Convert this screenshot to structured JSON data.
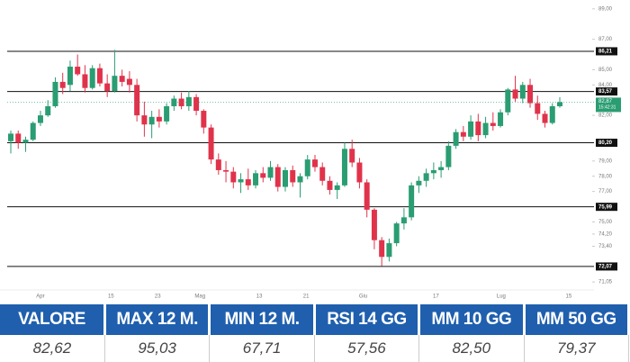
{
  "chart_data": {
    "type": "candlestick",
    "open": [
      80.3,
      80.8,
      80.2,
      80.4,
      81.5,
      82.0,
      82.6,
      84.2,
      84.0,
      85.2,
      84.7,
      83.8,
      85.1,
      84.1,
      83.6,
      84.6,
      84.4,
      84.0,
      82.0,
      81.4,
      81.9,
      81.6,
      82.6,
      83.1,
      82.6,
      83.2,
      82.3,
      81.2,
      79.1,
      78.4,
      78.3,
      77.6,
      77.8,
      77.4,
      78.2,
      77.9,
      78.6,
      77.3,
      78.4,
      77.6,
      78.0,
      79.1,
      78.6,
      77.7,
      77.1,
      77.4,
      79.8,
      78.9,
      77.6,
      75.8,
      73.8,
      72.7,
      73.6,
      74.9,
      75.3,
      77.4,
      77.7,
      78.2,
      78.4,
      78.6,
      80.0,
      80.9,
      80.6,
      81.6,
      80.7,
      81.5,
      81.3,
      82.2,
      83.7,
      83.1,
      84.0,
      82.8,
      82.1,
      81.5,
      82.6
    ],
    "high": [
      81.0,
      81.0,
      80.6,
      81.6,
      82.3,
      83.0,
      84.5,
      84.8,
      85.6,
      86.0,
      85.3,
      85.3,
      85.4,
      84.7,
      86.3,
      85.0,
      84.9,
      84.4,
      82.9,
      82.3,
      82.4,
      82.8,
      83.3,
      83.5,
      83.6,
      83.4,
      82.4,
      81.4,
      79.5,
      79.0,
      78.6,
      78.2,
      78.5,
      78.4,
      78.6,
      79.0,
      78.8,
      78.6,
      78.7,
      78.2,
      79.4,
      79.4,
      78.9,
      78.0,
      77.6,
      80.2,
      80.4,
      79.2,
      77.8,
      75.9,
      74.0,
      73.9,
      75.0,
      75.9,
      77.6,
      78.0,
      78.5,
      78.9,
      79.0,
      80.3,
      81.1,
      81.3,
      82.0,
      82.1,
      81.9,
      82.2,
      82.4,
      83.8,
      84.6,
      84.2,
      84.4,
      83.3,
      82.3,
      82.8,
      83.2
    ],
    "low": [
      79.5,
      79.8,
      79.6,
      80.3,
      81.3,
      81.9,
      82.5,
      83.4,
      83.6,
      84.6,
      83.5,
      83.7,
      83.9,
      83.2,
      83.5,
      83.9,
      83.5,
      81.6,
      80.6,
      80.5,
      81.2,
      81.4,
      82.3,
      82.4,
      82.3,
      82.0,
      80.8,
      78.8,
      78.1,
      77.6,
      77.2,
      76.9,
      77.1,
      77.2,
      77.6,
      77.7,
      77.0,
      77.0,
      77.3,
      76.6,
      77.8,
      78.3,
      77.4,
      76.8,
      76.5,
      77.3,
      78.6,
      77.2,
      75.3,
      73.2,
      72.1,
      72.4,
      73.4,
      74.5,
      75.1,
      76.9,
      77.3,
      77.8,
      77.9,
      78.4,
      79.8,
      80.3,
      80.4,
      80.3,
      80.5,
      81.0,
      81.2,
      82.0,
      82.9,
      82.8,
      82.5,
      81.7,
      81.2,
      81.4,
      82.5
    ],
    "close": [
      80.8,
      80.2,
      80.4,
      81.5,
      82.0,
      82.6,
      84.2,
      83.8,
      85.2,
      84.7,
      83.8,
      85.1,
      84.1,
      83.6,
      84.6,
      84.2,
      84.0,
      82.0,
      81.4,
      81.9,
      81.6,
      82.6,
      83.1,
      82.6,
      83.2,
      82.3,
      81.2,
      79.1,
      78.4,
      78.3,
      77.6,
      77.8,
      77.4,
      78.2,
      77.9,
      78.6,
      77.3,
      78.4,
      77.6,
      78.0,
      79.1,
      78.6,
      77.7,
      77.1,
      77.4,
      79.8,
      78.9,
      77.6,
      75.8,
      73.8,
      72.7,
      73.6,
      74.9,
      75.3,
      77.4,
      77.7,
      78.2,
      78.4,
      78.6,
      80.0,
      80.9,
      80.6,
      81.6,
      80.7,
      81.5,
      81.3,
      82.2,
      83.7,
      83.1,
      84.0,
      82.8,
      82.1,
      81.5,
      82.6,
      82.87
    ],
    "up_color": "#2a9d72",
    "down_color": "#e0334b",
    "ylim": [
      70.35,
      89.58
    ],
    "yticks": [
      {
        "value": 89,
        "label": "89,00"
      },
      {
        "value": 87,
        "label": "87,00"
      },
      {
        "value": 85,
        "label": "85,00"
      },
      {
        "value": 84,
        "label": "84,00"
      },
      {
        "value": 82,
        "label": "82,00"
      },
      {
        "value": 79,
        "label": "79,00"
      },
      {
        "value": 78,
        "label": "78,00"
      },
      {
        "value": 77,
        "label": "77,00"
      },
      {
        "value": 75,
        "label": "75,00"
      },
      {
        "value": 74.2,
        "label": "74,20"
      },
      {
        "value": 73.4,
        "label": "73,40"
      },
      {
        "value": 71.05,
        "label": "71,05"
      }
    ],
    "xticks": [
      {
        "value": 4,
        "label": "Apr"
      },
      {
        "value": 13.5,
        "label": "15"
      },
      {
        "value": 19.8,
        "label": "23"
      },
      {
        "value": 25.5,
        "label": "Mag"
      },
      {
        "value": 33.5,
        "label": "13"
      },
      {
        "value": 39.8,
        "label": "21"
      },
      {
        "value": 47.5,
        "label": "Giu"
      },
      {
        "value": 57.3,
        "label": "17"
      },
      {
        "value": 66.1,
        "label": "Lug"
      },
      {
        "value": 75.2,
        "label": "15"
      }
    ],
    "levels": [
      {
        "value": 86.21,
        "label": "86,21"
      },
      {
        "value": 83.57,
        "label": "83,57"
      },
      {
        "value": 80.2,
        "label": "80,20"
      },
      {
        "value": 75.99,
        "label": "75,99"
      },
      {
        "value": 72.07,
        "label": "72,07"
      }
    ],
    "last_price": {
      "value": 82.87,
      "label": "82,87"
    },
    "last_time": "15:42:31"
  },
  "table": {
    "headers": [
      "VALORE",
      "MAX 12 M.",
      "MIN 12 M.",
      "RSI 14 GG",
      "MM 10 GG",
      "MM 50 GG"
    ],
    "rows": [
      [
        "82,62",
        "95,03",
        "67,71",
        "57,56",
        "82,50",
        "79,37"
      ]
    ]
  }
}
